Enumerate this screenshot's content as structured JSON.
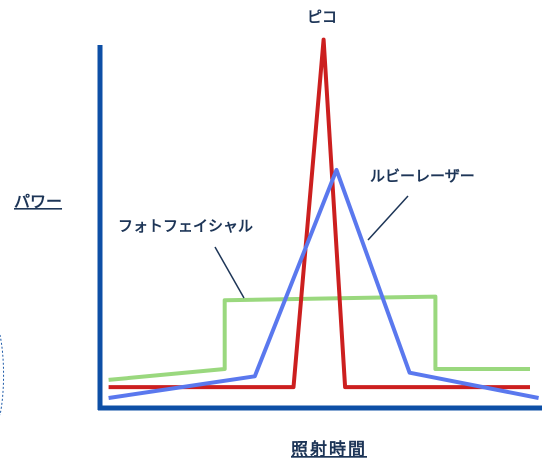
{
  "chart_data": {
    "type": "line",
    "title": "",
    "xlabel": "照射時間",
    "ylabel": "パワー",
    "grid": false,
    "legend": "none",
    "axis_color": "#0d4fa6",
    "series": [
      {
        "name": "ピコ",
        "color": "#cc1f1f",
        "points": [
          [
            0.02,
            0.03
          ],
          [
            0.45,
            0.03
          ],
          [
            0.52,
            0.99
          ],
          [
            0.57,
            0.03
          ],
          [
            1.0,
            0.03
          ]
        ]
      },
      {
        "name": "ルビーレーザー",
        "color": "#5a78ee",
        "points": [
          [
            0.02,
            0.0
          ],
          [
            0.36,
            0.06
          ],
          [
            0.55,
            0.63
          ],
          [
            0.72,
            0.07
          ],
          [
            1.02,
            0.0
          ]
        ]
      },
      {
        "name": "フォトフェイシャル",
        "color": "#9ad87e",
        "points": [
          [
            0.02,
            0.05
          ],
          [
            0.29,
            0.08
          ],
          [
            0.29,
            0.27
          ],
          [
            0.78,
            0.28
          ],
          [
            0.78,
            0.08
          ],
          [
            1.0,
            0.08
          ]
        ]
      }
    ]
  },
  "labels": {
    "pico": "ピコ",
    "ruby": "ルビーレーザー",
    "photo": "フォトフェイシャル",
    "xaxis": "照射時間",
    "yaxis": "パワー"
  }
}
